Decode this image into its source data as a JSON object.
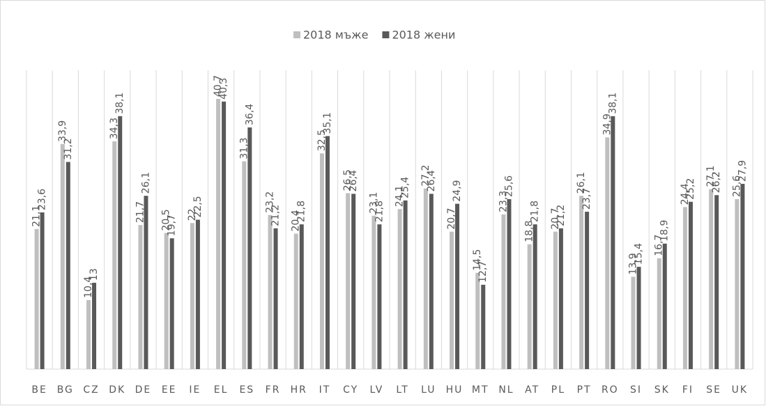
{
  "chart_data": {
    "type": "bar",
    "categories": [
      "BE",
      "BG",
      "CZ",
      "DK",
      "DE",
      "EE",
      "IE",
      "EL",
      "ES",
      "FR",
      "HR",
      "IT",
      "CY",
      "LV",
      "LT",
      "LU",
      "HU",
      "MT",
      "NL",
      "AT",
      "PL",
      "PT",
      "RO",
      "SI",
      "SK",
      "FI",
      "SE",
      "UK"
    ],
    "series": [
      {
        "name": "2018 мъже",
        "color": "#bfbfbf",
        "values": [
          21.1,
          33.9,
          10.4,
          34.3,
          21.7,
          20.5,
          22,
          40.7,
          31.3,
          23.2,
          20.4,
          32.5,
          26.5,
          23.1,
          24.1,
          27.2,
          20.7,
          14.5,
          23.3,
          18.8,
          20.7,
          26.1,
          34.9,
          13.9,
          16.7,
          24.4,
          27.1,
          25.6
        ],
        "value_labels": [
          "21,1",
          "33,9",
          "10,4",
          "34,3",
          "21,7",
          "20,5",
          "22",
          "40,7",
          "31,3",
          "23,2",
          "20,4",
          "32,5",
          "26,5",
          "23,1",
          "24,1",
          "27,2",
          "20,7",
          "14,5",
          "23,3",
          "18,8",
          "20,7",
          "26,1",
          "34,9",
          "13,9",
          "16,7",
          "24,4",
          "27,1",
          "25,6"
        ]
      },
      {
        "name": "2018 жени",
        "color": "#595959",
        "values": [
          23.6,
          31.2,
          13,
          38.1,
          26.1,
          19.7,
          22.5,
          40.3,
          36.4,
          21.2,
          21.8,
          35.1,
          26.4,
          21.8,
          25.4,
          26.4,
          24.9,
          12.7,
          25.6,
          21.8,
          21.2,
          23.7,
          38.1,
          15.4,
          18.9,
          25.2,
          26.2,
          27.9
        ],
        "value_labels": [
          "23,6",
          "31,2",
          "13",
          "38,1",
          "26,1",
          "19,7",
          "22,5",
          "40,3",
          "36,4",
          "21,2",
          "21,8",
          "35,1",
          "26,4",
          "21,8",
          "25,4",
          "26,4",
          "24,9",
          "12,7",
          "25,6",
          "21,8",
          "21,2",
          "23,7",
          "38,1",
          "15,4",
          "18,9",
          "25,2",
          "26,2",
          "27,9"
        ]
      }
    ],
    "ylim": [
      0,
      45
    ],
    "grid": true,
    "legend": "top"
  }
}
